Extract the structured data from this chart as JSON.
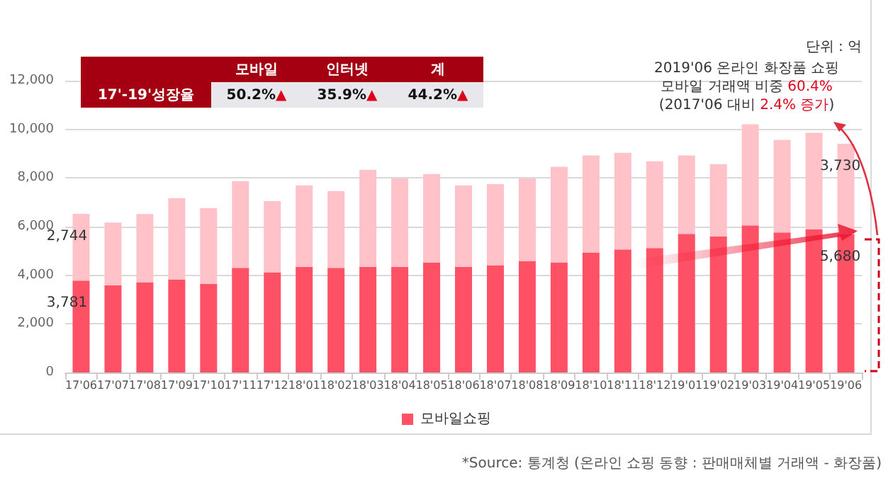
{
  "chart_data": {
    "type": "bar",
    "stacked": true,
    "categories": [
      "17'06",
      "17'07",
      "17'08",
      "17'09",
      "17'10",
      "17'11",
      "17'12",
      "18'01",
      "18'02",
      "18'03",
      "18'04",
      "18'05",
      "18'06",
      "18'07",
      "18'08",
      "18'09",
      "18'10",
      "18'11",
      "18'12",
      "19'01",
      "19'02",
      "19'03",
      "19'04",
      "19'05",
      "19'06"
    ],
    "series": [
      {
        "name": "모바일쇼핑",
        "color": "#ff5166",
        "values": [
          3781,
          3590,
          3710,
          3830,
          3650,
          4300,
          4120,
          4350,
          4300,
          4350,
          4350,
          4530,
          4350,
          4410,
          4590,
          4530,
          4940,
          5060,
          5120,
          5700,
          5590,
          6050,
          5760,
          5880,
          5680
        ],
        "value_labels": [
          "3,781",
          null,
          null,
          null,
          null,
          null,
          null,
          null,
          null,
          null,
          null,
          null,
          null,
          null,
          null,
          null,
          null,
          null,
          null,
          null,
          null,
          null,
          null,
          null,
          "5,680"
        ]
      },
      {
        "color": "#ffc2c9",
        "values": [
          2744,
          2580,
          2810,
          3340,
          3110,
          3570,
          2930,
          3350,
          3160,
          3990,
          3640,
          3630,
          3350,
          3340,
          3400,
          3930,
          3990,
          3980,
          3570,
          3230,
          2980,
          4160,
          3810,
          3980,
          3730
        ],
        "value_labels": [
          "2,744",
          null,
          null,
          null,
          null,
          null,
          null,
          null,
          null,
          null,
          null,
          null,
          null,
          null,
          null,
          null,
          null,
          null,
          null,
          null,
          null,
          null,
          null,
          null,
          "3,730"
        ]
      }
    ],
    "ylim": [
      0,
      12000
    ],
    "yticks": [
      {
        "value": 0,
        "label": "0"
      },
      {
        "value": 2000,
        "label": "2,000"
      },
      {
        "value": 4000,
        "label": "4,000"
      },
      {
        "value": 6000,
        "label": "6,000"
      },
      {
        "value": 8000,
        "label": "8,000"
      },
      {
        "value": 10000,
        "label": "10,000"
      },
      {
        "value": 12000,
        "label": "12,000"
      }
    ],
    "grid": "y",
    "legend": "bottom",
    "annotations": [
      "단위 : 억",
      "2019'06 온라인 화장품 쇼핑",
      "모바일 거래액 비중 60.4%",
      "(2017'06 대비 2.4% 증가)",
      "모바일",
      "인터넷",
      "계",
      "17'-19'성장율",
      "50.2%▲",
      "35.9%▲",
      "44.2%▲",
      "*Source: 통계청 (온라인 쇼핑 동향 : 판매매체별 거래액 - 화장품)"
    ]
  }
}
